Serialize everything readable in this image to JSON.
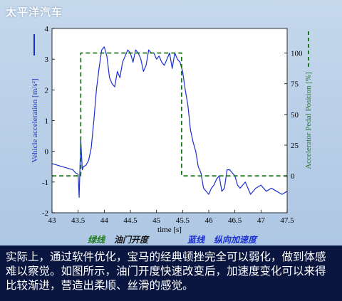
{
  "watermark": "太平洋汽车",
  "colors": {
    "background_top": "#c5d8ec",
    "plot_area": "#ffffff",
    "acceleration": "#1a2fd0",
    "pedal": "#1f7a1f",
    "caption_bg": "#0a1640",
    "caption_text": "#ffffff"
  },
  "legend": {
    "green_label": "绿线",
    "green_desc": "油门开度",
    "blue_label": "蓝线",
    "blue_desc": "纵向加速度"
  },
  "caption": "实际上，通过软件优化，宝马的经典顿挫完全可以弱化，做到体感难以察觉。如图所示，油门开度快速改变后，加速度变化可以来得比较渐进，营造出柔顺、丝滑的感觉。",
  "chart_data": {
    "type": "line",
    "xlabel": "time [s]",
    "ylabel_left": "Vehicle acceleration [m/s²]",
    "ylabel_right": "Accelerator Pedal Position [%]",
    "xlim": [
      43,
      47.5
    ],
    "ylim_left": [
      -2,
      4
    ],
    "ylim_right": [
      -30,
      120
    ],
    "x_ticks": [
      "43",
      "43.5",
      "44",
      "44.5",
      "45",
      "45.5",
      "46",
      "46.5",
      "47",
      "47.5"
    ],
    "y_ticks_left": [
      "-2",
      "-1",
      "0",
      "1",
      "2",
      "3",
      "4"
    ],
    "y_ticks_right": [
      "0",
      "25",
      "50",
      "75",
      "100"
    ],
    "series": [
      {
        "name": "纵向加速度",
        "axis": "left",
        "style": "solid",
        "x": [
          43.0,
          43.1,
          43.2,
          43.3,
          43.4,
          43.45,
          43.5,
          43.52,
          43.55,
          43.58,
          43.6,
          43.65,
          43.7,
          43.75,
          43.8,
          43.85,
          43.9,
          43.95,
          44.0,
          44.05,
          44.1,
          44.15,
          44.2,
          44.25,
          44.3,
          44.35,
          44.4,
          44.45,
          44.5,
          44.55,
          44.6,
          44.65,
          44.7,
          44.75,
          44.8,
          44.85,
          44.9,
          44.95,
          45.0,
          45.05,
          45.1,
          45.15,
          45.2,
          45.25,
          45.3,
          45.35,
          45.4,
          45.45,
          45.5,
          45.55,
          45.6,
          45.65,
          45.7,
          45.75,
          45.8,
          45.85,
          45.9,
          45.95,
          46.0,
          46.05,
          46.1,
          46.15,
          46.2,
          46.25,
          46.3,
          46.35,
          46.4,
          46.45,
          46.5,
          46.55,
          46.6,
          46.7,
          46.8,
          46.9,
          47.0,
          47.1,
          47.2,
          47.3,
          47.4,
          47.5
        ],
        "y": [
          -0.4,
          -0.45,
          -0.5,
          -0.55,
          -0.6,
          -0.7,
          -0.75,
          -1.5,
          0.4,
          -0.6,
          -0.5,
          -0.45,
          -0.3,
          0.1,
          1.0,
          2.0,
          2.7,
          3.3,
          3.4,
          3.1,
          2.4,
          2.2,
          2.1,
          2.6,
          2.4,
          2.9,
          3.1,
          3.3,
          3.2,
          2.9,
          3.3,
          3.2,
          3.0,
          2.6,
          2.8,
          3.3,
          3.2,
          3.2,
          3.0,
          3.1,
          2.9,
          2.8,
          3.0,
          3.2,
          2.7,
          3.2,
          3.0,
          2.9,
          2.6,
          2.0,
          1.5,
          0.7,
          0.3,
          0.0,
          -0.5,
          -0.7,
          -1.2,
          -1.3,
          -1.4,
          -1.2,
          -1.1,
          -0.9,
          -0.8,
          -1.3,
          -1.2,
          -0.6,
          -0.6,
          -0.7,
          -0.8,
          -1.1,
          -1.2,
          -1.0,
          -1.4,
          -1.2,
          -1.1,
          -1.3,
          -1.2,
          -1.3,
          -1.4,
          -1.3
        ]
      },
      {
        "name": "油门开度",
        "axis": "right",
        "style": "dashed",
        "x": [
          43.0,
          43.55,
          43.55,
          45.48,
          45.48,
          47.5
        ],
        "y": [
          0,
          0,
          100,
          100,
          0,
          0
        ]
      }
    ]
  }
}
